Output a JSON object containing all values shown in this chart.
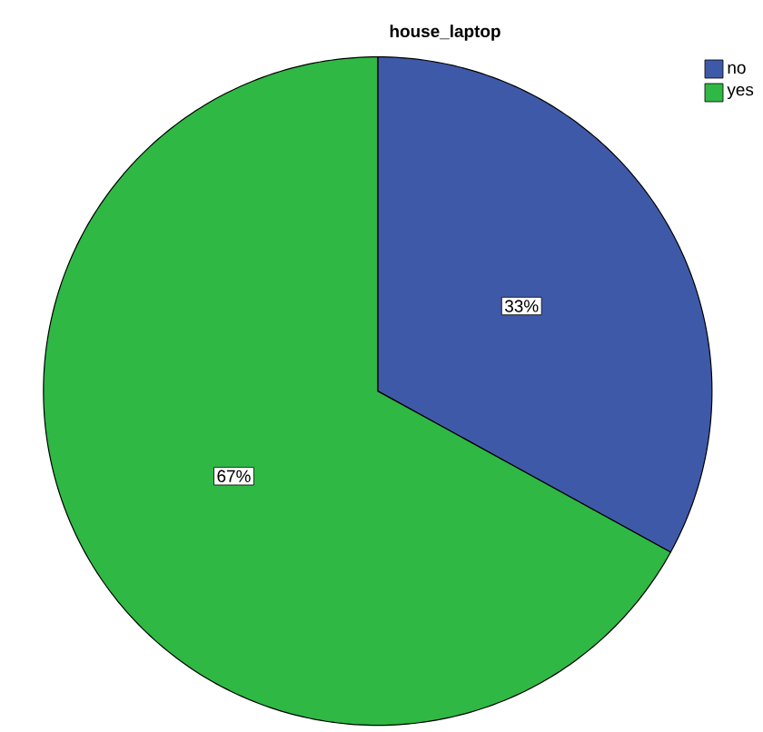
{
  "chart_data": {
    "type": "pie",
    "title": "house_laptop",
    "categories": [
      "no",
      "yes"
    ],
    "values": [
      33,
      67
    ],
    "value_labels": [
      "33%",
      "67%"
    ],
    "colors": [
      "#3f59a9",
      "#2fb844"
    ],
    "legend": "top right"
  }
}
